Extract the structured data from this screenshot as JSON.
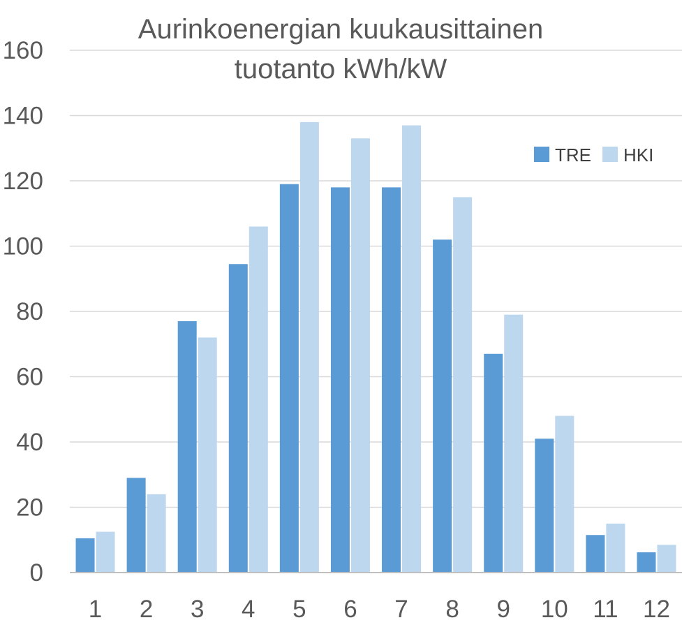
{
  "chart_data": {
    "type": "bar",
    "title": [
      "Aurinkoenergian kuukausittainen",
      "tuotanto kWh/kW"
    ],
    "categories": [
      "1",
      "2",
      "3",
      "4",
      "5",
      "6",
      "7",
      "8",
      "9",
      "10",
      "11",
      "12"
    ],
    "series": [
      {
        "name": "TRE",
        "color": "#5b9bd5",
        "values": [
          10.5,
          29,
          77,
          94.5,
          119,
          118,
          118,
          102,
          67,
          41,
          11.5,
          6.2
        ]
      },
      {
        "name": "HKI",
        "color": "#bdd7ee",
        "values": [
          12.5,
          24,
          72,
          106,
          138,
          133,
          137,
          115,
          79,
          48,
          15,
          8.5
        ]
      }
    ],
    "ylim": [
      0,
      160
    ],
    "yticks": [
      "0",
      "20",
      "40",
      "60",
      "80",
      "100",
      "120",
      "140",
      "160"
    ],
    "grid": true,
    "legend_position": "top-right"
  }
}
